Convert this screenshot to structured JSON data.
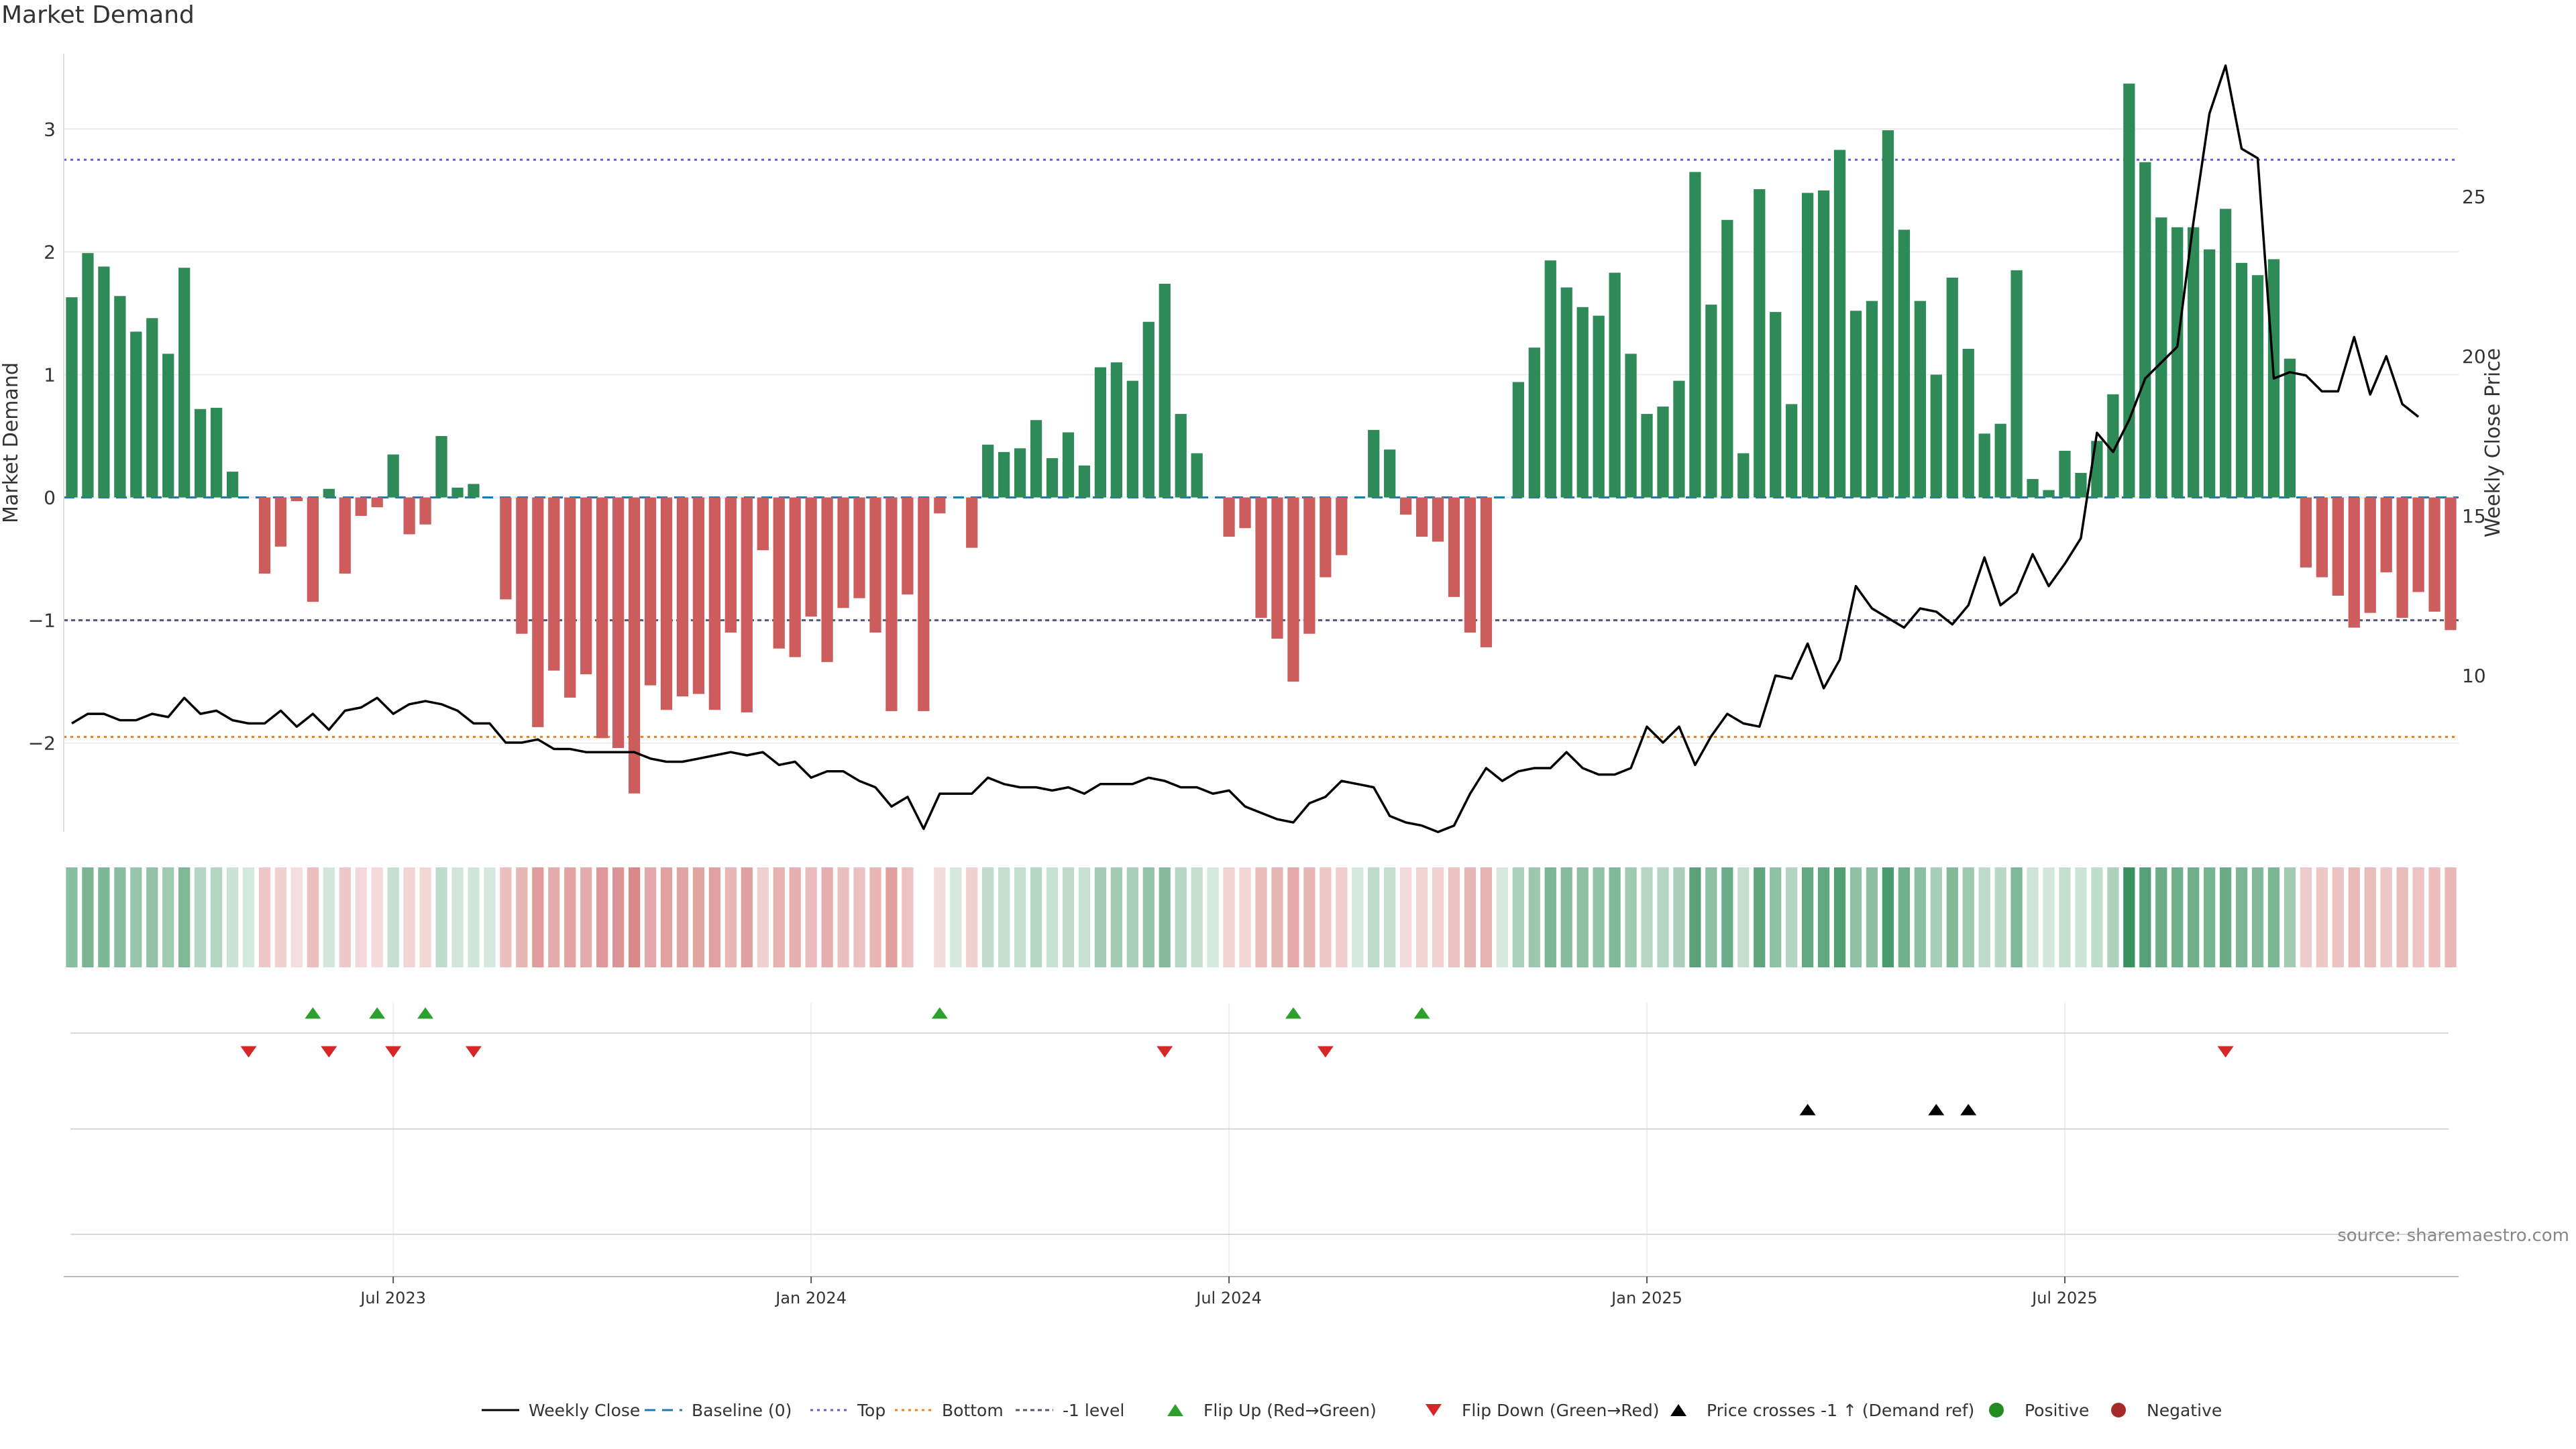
{
  "title": "Market Demand",
  "source": "source: sharemaestro.com",
  "colors": {
    "positive": "#2e8b57",
    "negative": "#cd5c5c",
    "price_line": "#000000",
    "baseline": "#1f77b4",
    "top_line": "#6a5acd",
    "bottom_line": "#ff7f0e",
    "minus1_line": "#555577",
    "flip_up": "#2ca02c",
    "flip_down": "#d62728",
    "cross_marker": "#000000"
  },
  "chart_data": {
    "type": "bar",
    "title": "Market Demand",
    "ylabel": "Market Demand",
    "y2label": "Weekly Close Price",
    "ylim": [
      -2.75,
      3.75
    ],
    "y2lim": [
      5,
      30
    ],
    "yticks": [
      -2,
      -1,
      0,
      1,
      2,
      3
    ],
    "y2ticks": [
      10,
      15,
      20,
      25
    ],
    "reference_lines": {
      "baseline": 0,
      "top": 2.75,
      "bottom": -1.95,
      "minus1": -1
    },
    "x_ticks": [
      "Jul 2023",
      "Jan 2024",
      "Jul 2024",
      "Jan 2025",
      "Jul 2025"
    ],
    "x_tick_weeks": [
      20,
      46,
      72,
      98,
      124
    ],
    "demand": [
      1.63,
      1.99,
      1.88,
      1.64,
      1.35,
      1.46,
      1.17,
      1.87,
      0.72,
      0.73,
      0.21,
      0,
      -0.62,
      -0.4,
      -0.03,
      -0.85,
      0.07,
      -0.62,
      -0.15,
      -0.08,
      0.35,
      -0.3,
      -0.22,
      0.5,
      0.08,
      0.11,
      0,
      -0.83,
      -1.11,
      -1.87,
      -1.41,
      -1.63,
      -1.44,
      -1.96,
      -2.04,
      -2.41,
      -1.53,
      -1.73,
      -1.62,
      -1.6,
      -1.73,
      -1.1,
      -1.75,
      -0.43,
      -1.23,
      -1.3,
      -0.97,
      -1.34,
      -0.9,
      -0.82,
      -1.1,
      -1.74,
      -0.79,
      -1.74,
      -0.13,
      0,
      -0.41,
      0.43,
      0.37,
      0.4,
      0.63,
      0.32,
      0.53,
      0.26,
      1.06,
      1.1,
      0.95,
      1.43,
      1.74,
      0.68,
      0.36,
      0,
      -0.32,
      -0.25,
      -0.98,
      -1.15,
      -1.5,
      -1.11,
      -0.65,
      -0.47,
      0,
      0.55,
      0.39,
      -0.14,
      -0.32,
      -0.36,
      -0.81,
      -1.1,
      -1.22,
      0,
      0.94,
      1.22,
      1.93,
      1.71,
      1.55,
      1.48,
      1.83,
      1.17,
      0.68,
      0.74,
      0.95,
      2.65,
      1.57,
      2.26,
      0.36,
      2.51,
      1.51,
      0.76,
      2.48,
      2.5,
      2.83,
      1.52,
      1.6,
      2.99,
      2.18,
      1.6,
      1.0,
      1.79,
      1.21,
      0.52,
      0.6,
      1.85,
      0.15,
      0.06,
      0.38,
      0.2,
      0.46,
      0.84,
      3.37,
      2.73,
      2.28,
      2.2,
      2.2,
      2.02,
      2.35,
      1.91,
      1.81,
      1.94,
      1.13,
      -0.57,
      -0.65,
      -0.8,
      -1.06,
      -0.94,
      -0.61,
      -0.98,
      -0.77,
      -0.93,
      -1.08
    ],
    "price": [
      8.5,
      8.8,
      8.8,
      8.6,
      8.6,
      8.8,
      8.7,
      9.3,
      8.8,
      8.9,
      8.6,
      8.5,
      8.5,
      8.9,
      8.4,
      8.8,
      8.3,
      8.9,
      9.0,
      9.3,
      8.8,
      9.1,
      9.2,
      9.1,
      8.9,
      8.5,
      8.5,
      7.9,
      7.9,
      8.0,
      7.7,
      7.7,
      7.6,
      7.6,
      7.6,
      7.6,
      7.4,
      7.3,
      7.3,
      7.4,
      7.5,
      7.6,
      7.5,
      7.6,
      7.2,
      7.3,
      6.8,
      7.0,
      7.0,
      6.7,
      6.5,
      5.9,
      6.2,
      5.2,
      6.3,
      6.3,
      6.3,
      6.8,
      6.6,
      6.5,
      6.5,
      6.4,
      6.5,
      6.3,
      6.6,
      6.6,
      6.6,
      6.8,
      6.7,
      6.5,
      6.5,
      6.3,
      6.4,
      5.9,
      5.7,
      5.5,
      5.4,
      6.0,
      6.2,
      6.7,
      6.6,
      6.5,
      5.6,
      5.4,
      5.3,
      5.1,
      5.3,
      6.3,
      7.1,
      6.7,
      7.0,
      7.1,
      7.1,
      7.6,
      7.1,
      6.9,
      6.9,
      7.1,
      8.4,
      7.9,
      8.4,
      7.2,
      8.1,
      8.8,
      8.5,
      8.4,
      10.0,
      9.9,
      11.0,
      9.6,
      10.5,
      12.8,
      12.1,
      11.8,
      11.5,
      12.1,
      12.0,
      11.6,
      12.2,
      13.7,
      12.2,
      12.6,
      13.8,
      12.8,
      13.5,
      14.3,
      17.6,
      17.0,
      18.0,
      19.3,
      19.8,
      20.3,
      24.2,
      27.6,
      29.1,
      26.5,
      26.2,
      19.3,
      19.5,
      19.4,
      18.9,
      18.9,
      20.6,
      18.8,
      20.0,
      18.5,
      18.1
    ],
    "flip_up_weeks": [
      15,
      19,
      22,
      54,
      76,
      84
    ],
    "flip_down_weeks": [
      11,
      16,
      20,
      25,
      68,
      78,
      134
    ],
    "price_cross_weeks": [
      108,
      116,
      118
    ],
    "heat_missing_weeks": [
      53
    ]
  },
  "legend": [
    {
      "label": "Weekly Close",
      "kind": "line"
    },
    {
      "label": "Baseline (0)",
      "kind": "dashed"
    },
    {
      "label": "Top",
      "kind": "dotted-top"
    },
    {
      "label": "Bottom",
      "kind": "dotted-bottom"
    },
    {
      "label": "-1 level",
      "kind": "dashed-minus1"
    },
    {
      "label": "Flip Up (Red→Green)",
      "kind": "tri-up-green"
    },
    {
      "label": "Flip Down (Green→Red)",
      "kind": "tri-down-red"
    },
    {
      "label": "Price crosses -1 ↑ (Demand ref)",
      "kind": "tri-up-black"
    },
    {
      "label": "Positive",
      "kind": "dot-green"
    },
    {
      "label": "Negative",
      "kind": "dot-red"
    }
  ]
}
